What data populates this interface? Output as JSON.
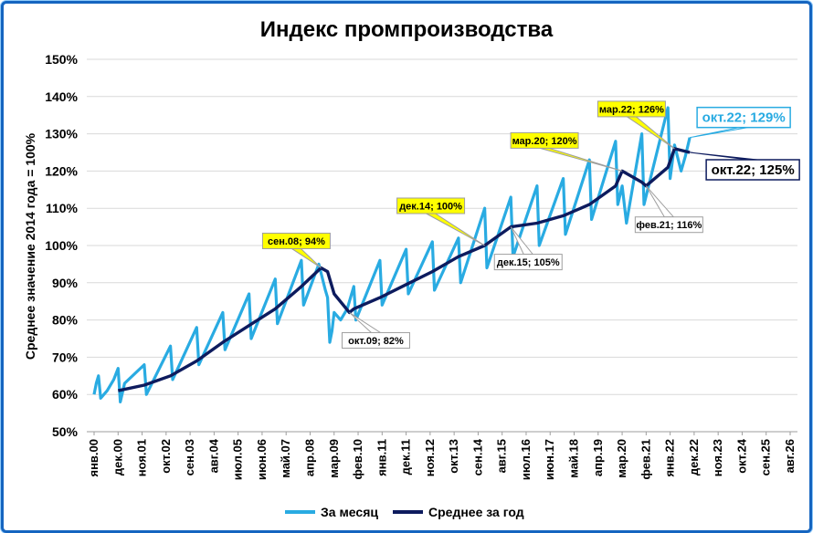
{
  "chart_data": {
    "type": "line",
    "title": "Индекс промпроизводства",
    "ylabel": "Среднее значение 2014 года = 100%",
    "xlabel": "",
    "ylim": [
      50,
      150
    ],
    "y_ticks": [
      "50%",
      "60%",
      "70%",
      "80%",
      "90%",
      "100%",
      "110%",
      "120%",
      "130%",
      "140%",
      "150%"
    ],
    "x_ticks": [
      "янв.00",
      "дек.00",
      "ноя.01",
      "окт.02",
      "сен.03",
      "авг.04",
      "июл.05",
      "июн.06",
      "май.07",
      "апр.08",
      "мар.09",
      "фев.10",
      "янв.11",
      "дек.11",
      "ноя.12",
      "окт.13",
      "сен.14",
      "авг.15",
      "июл.16",
      "июн.17",
      "май.18",
      "апр.19",
      "мар.20",
      "фев.21",
      "янв.22",
      "дек.22",
      "ноя.23",
      "окт.24",
      "сен.25",
      "авг.26"
    ],
    "grid": true,
    "legend_position": "bottom",
    "colors": {
      "monthly": "#29abe2",
      "annual": "#0d1b5e",
      "frame": "#1565c0"
    },
    "series": [
      {
        "name": "За месяц",
        "key": "monthly",
        "points": [
          [
            "янв.00",
            60
          ],
          [
            "фев.00",
            63
          ],
          [
            "мар.00",
            65
          ],
          [
            "апр.00",
            59
          ],
          [
            "июл.00",
            61
          ],
          [
            "окт.00",
            64
          ],
          [
            "дек.00",
            67
          ],
          [
            "янв.01",
            58
          ],
          [
            "мар.01",
            63
          ],
          [
            "дек.01",
            68
          ],
          [
            "янв.02",
            60
          ],
          [
            "дек.02",
            73
          ],
          [
            "янв.03",
            64
          ],
          [
            "дек.03",
            78
          ],
          [
            "янв.04",
            68
          ],
          [
            "дек.04",
            82
          ],
          [
            "янв.05",
            72
          ],
          [
            "дек.05",
            87
          ],
          [
            "янв.06",
            75
          ],
          [
            "дек.06",
            91
          ],
          [
            "янв.07",
            79
          ],
          [
            "дек.07",
            96
          ],
          [
            "янв.08",
            84
          ],
          [
            "авг.08",
            95
          ],
          [
            "ноя.08",
            88
          ],
          [
            "дек.08",
            86
          ],
          [
            "янв.09",
            74
          ],
          [
            "фев.09",
            77
          ],
          [
            "мар.09",
            82
          ],
          [
            "июн.09",
            80
          ],
          [
            "сен.09",
            83
          ],
          [
            "дек.09",
            89
          ],
          [
            "янв.10",
            80
          ],
          [
            "дек.10",
            96
          ],
          [
            "янв.11",
            84
          ],
          [
            "дек.11",
            99
          ],
          [
            "янв.12",
            87
          ],
          [
            "дек.12",
            101
          ],
          [
            "янв.13",
            88
          ],
          [
            "дек.13",
            102
          ],
          [
            "янв.14",
            90
          ],
          [
            "дек.14",
            110
          ],
          [
            "янв.15",
            94
          ],
          [
            "дек.15",
            113
          ],
          [
            "янв.16",
            97
          ],
          [
            "дек.16",
            116
          ],
          [
            "янв.17",
            100
          ],
          [
            "дек.17",
            118
          ],
          [
            "янв.18",
            103
          ],
          [
            "дек.18",
            123
          ],
          [
            "янв.19",
            107
          ],
          [
            "дек.19",
            128
          ],
          [
            "янв.20",
            111
          ],
          [
            "мар.20",
            116
          ],
          [
            "май.20",
            106
          ],
          [
            "дек.20",
            130
          ],
          [
            "янв.21",
            111
          ],
          [
            "дек.21",
            137
          ],
          [
            "янв.22",
            118
          ],
          [
            "мар.22",
            127
          ],
          [
            "июн.22",
            120
          ],
          [
            "авг.22",
            124
          ],
          [
            "окт.22",
            129
          ]
        ]
      },
      {
        "name": "Среднее за год",
        "key": "annual",
        "points": [
          [
            "дек.00",
            61
          ],
          [
            "дек.01",
            62.5
          ],
          [
            "дек.02",
            65
          ],
          [
            "дек.03",
            69
          ],
          [
            "дек.04",
            74
          ],
          [
            "дек.05",
            78.5
          ],
          [
            "дек.06",
            83
          ],
          [
            "дек.07",
            89
          ],
          [
            "сен.08",
            94
          ],
          [
            "дек.08",
            93
          ],
          [
            "мар.09",
            87
          ],
          [
            "окт.09",
            82
          ],
          [
            "дек.09",
            83
          ],
          [
            "дек.10",
            86
          ],
          [
            "дек.11",
            89.5
          ],
          [
            "дек.12",
            93
          ],
          [
            "дек.13",
            97
          ],
          [
            "дек.14",
            100
          ],
          [
            "дек.15",
            105
          ],
          [
            "дек.16",
            106
          ],
          [
            "дек.17",
            108
          ],
          [
            "дек.18",
            111
          ],
          [
            "дек.19",
            116
          ],
          [
            "мар.20",
            120
          ],
          [
            "дек.20",
            117
          ],
          [
            "фев.21",
            116
          ],
          [
            "дек.21",
            121
          ],
          [
            "мар.22",
            126
          ],
          [
            "окт.22",
            125
          ]
        ]
      }
    ],
    "annotations": [
      {
        "text": "сен.08; 94%",
        "at": [
          "сен.08",
          94
        ],
        "style": "yellow"
      },
      {
        "text": "окт.09; 82%",
        "at": [
          "окт.09",
          82
        ],
        "style": "white"
      },
      {
        "text": "дек.14; 100%",
        "at": [
          "дек.14",
          100
        ],
        "style": "yellow"
      },
      {
        "text": "дек.15; 105%",
        "at": [
          "дек.15",
          105
        ],
        "style": "white"
      },
      {
        "text": "мар.20; 120%",
        "at": [
          "мар.20",
          120
        ],
        "style": "yellow"
      },
      {
        "text": "фев.21; 116%",
        "at": [
          "фев.21",
          116
        ],
        "style": "white"
      },
      {
        "text": "мар.22; 126%",
        "at": [
          "мар.22",
          126
        ],
        "style": "yellow"
      },
      {
        "text": "окт.22; 129%",
        "at": [
          "окт.22",
          129
        ],
        "style": "big-light"
      },
      {
        "text": "окт.22; 125%",
        "at": [
          "окт.22",
          125
        ],
        "style": "big-dark"
      }
    ]
  }
}
